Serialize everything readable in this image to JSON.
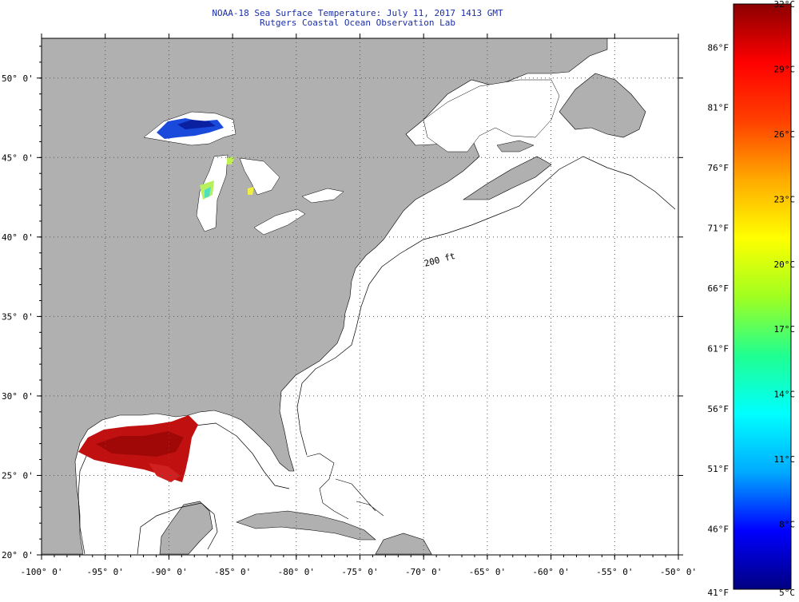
{
  "title": {
    "line1": "NOAA-18 Sea Surface Temperature:  July 11, 2017 1413 GMT",
    "line2": "Rutgers Coastal Ocean Observation Lab"
  },
  "map": {
    "lon_range": [
      -100,
      -50
    ],
    "lat_range": [
      20,
      52.5
    ],
    "lon_ticks": [
      "-100° 0'",
      "-95° 0'",
      "-90° 0'",
      "-85° 0'",
      "-80° 0'",
      "-75° 0'",
      "-70° 0'",
      "-65° 0'",
      "-60° 0'",
      "-55° 0'",
      "-50° 0'"
    ],
    "lat_ticks": [
      "20° 0'",
      "25° 0'",
      "30° 0'",
      "35° 0'",
      "40° 0'",
      "45° 0'",
      "50° 0'"
    ],
    "contour_label": "200 ft",
    "colors": {
      "land": "#b0b0b0",
      "water": "#ffffff",
      "grid": "#555555",
      "title": "#1a2ea8"
    }
  },
  "colorbar": {
    "celsius_labels": [
      "5°C",
      "8°C",
      "11°C",
      "14°C",
      "17°C",
      "20°C",
      "23°C",
      "26°C",
      "29°C",
      "32°C"
    ],
    "fahrenheit_labels": [
      "41°F",
      "46°F",
      "51°F",
      "56°F",
      "61°F",
      "66°F",
      "71°F",
      "76°F",
      "81°F",
      "86°F"
    ],
    "min_c": 5,
    "max_c": 32,
    "stops": [
      "#000080",
      "#0000ff",
      "#00aaff",
      "#00ffff",
      "#20ff90",
      "#a0ff20",
      "#ffff00",
      "#ffaa00",
      "#ff4000",
      "#ff0000",
      "#8b0000"
    ]
  }
}
